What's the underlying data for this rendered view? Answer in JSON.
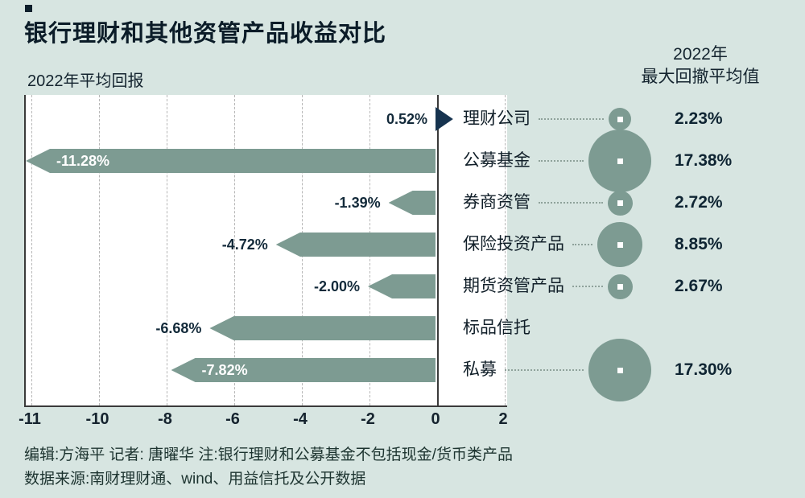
{
  "title": "银行理财和其他资管产品收益对比",
  "left_axis_title": "2022年平均回报",
  "right_header": {
    "line1": "2022年",
    "line2": "最大回撤平均值"
  },
  "footer": {
    "line1": "编辑:方海平  记者: 唐曜华  注:银行理财和公募基金不包括现金/货币类产品",
    "line2": "数据来源:南财理财通、wind、用益信托及公开数据"
  },
  "colors": {
    "background": "#d7e5e1",
    "plot_background": "#ffffff",
    "bar_teal": "#7d9b92",
    "bar_navy": "#16334f",
    "bubble_teal": "#7d9b92",
    "text_dark": "#0d1f2b",
    "gridline": "#b7b7b7",
    "axis_line": "#3a3a3a"
  },
  "chart_data": {
    "type": "bar",
    "subtype": "horizontal-pennant-bars-with-bubble-column",
    "title": "银行理财和其他资管产品收益对比",
    "xlabel": "",
    "ylabel": "",
    "grid": "dashed-vertical",
    "legend": "none",
    "x_ticks": [
      -11,
      -10,
      -8,
      -6,
      -4,
      -2,
      0,
      2
    ],
    "x_tick_labels": [
      "-11",
      "-10",
      "-8",
      "-6",
      "-4",
      "-2",
      "0",
      "2"
    ],
    "categories": [
      "理财公司",
      "公募基金",
      "券商资管",
      "保险投资产品",
      "期货资管产品",
      "标品信托",
      "私募"
    ],
    "series": [
      {
        "name": "2022年平均回报",
        "unit": "%",
        "values": [
          0.52,
          -11.28,
          -1.39,
          -4.72,
          -2.0,
          -6.68,
          -7.82
        ],
        "labels": [
          "0.52%",
          "-11.28%",
          "-1.39%",
          "-4.72%",
          "-2.00%",
          "-6.68%",
          "-7.82%"
        ]
      },
      {
        "name": "2022年最大回撤平均值",
        "unit": "%",
        "values": [
          2.23,
          17.38,
          2.72,
          8.85,
          2.67,
          null,
          17.3
        ],
        "labels": [
          "2.23%",
          "17.38%",
          "2.72%",
          "8.85%",
          "2.67%",
          "",
          "17.30%"
        ]
      }
    ]
  }
}
